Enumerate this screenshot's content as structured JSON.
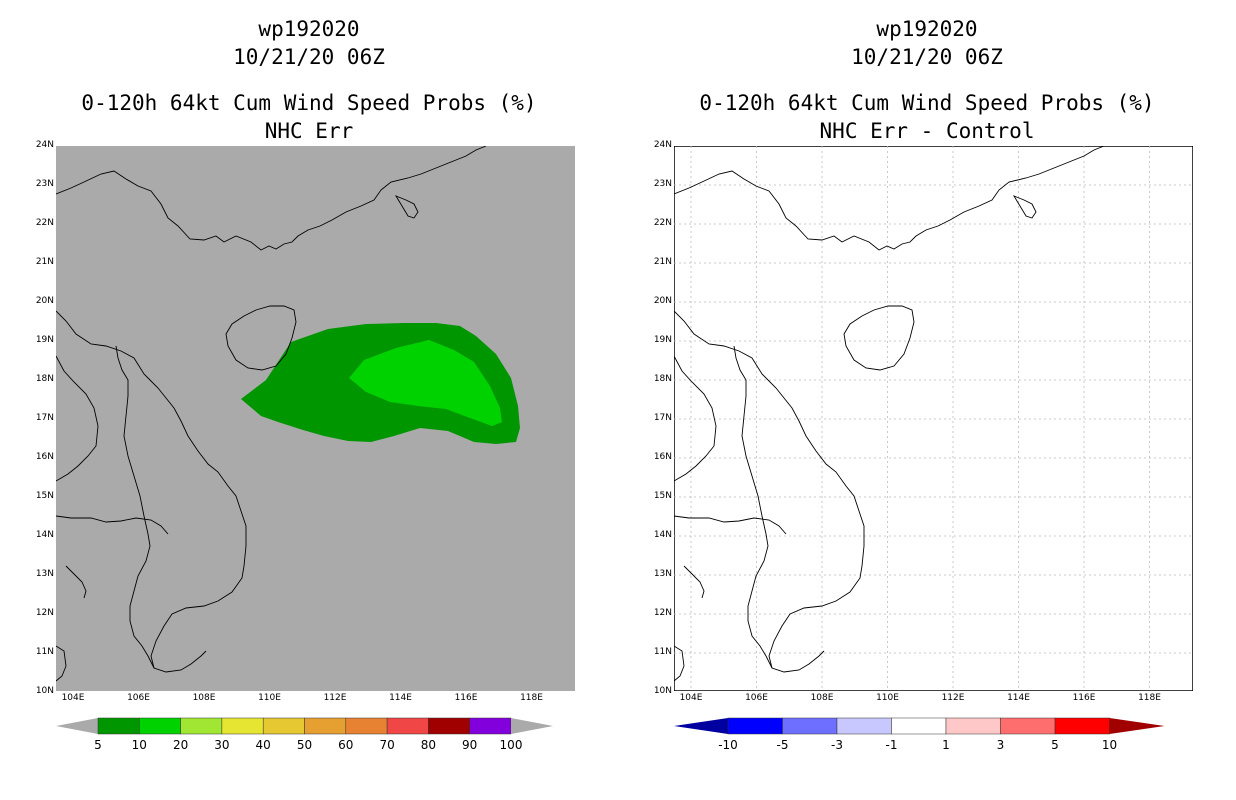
{
  "left_panel": {
    "title_line1": "wp192020",
    "title_line2": "10/21/20 06Z",
    "title_line3": "0-120h 64kt Cum Wind Speed Probs (%)",
    "title_line4": "NHC Err",
    "map_background": "#aaaaaa",
    "contour_colors": [
      "#009600",
      "#00d200"
    ],
    "colorbar_colors": [
      "#009600",
      "#00d200",
      "#a0e632",
      "#e6e632",
      "#e6c832",
      "#e6a032",
      "#e68232",
      "#f04646",
      "#a00000",
      "#8200dc"
    ],
    "colorbar_labels": [
      "5",
      "10",
      "20",
      "30",
      "40",
      "50",
      "60",
      "70",
      "80",
      "90",
      "100"
    ]
  },
  "right_panel": {
    "title_line1": "wp192020",
    "title_line2": "10/21/20 06Z",
    "title_line3": "0-120h 64kt Cum Wind Speed Probs (%)",
    "title_line4": "NHC Err - Control",
    "map_background": "#ffffff",
    "colorbar_colors": [
      "#0000a0",
      "#0000ff",
      "#6e6eff",
      "#c8c8ff",
      "#ffffff",
      "#ffc8c8",
      "#ff6e6e",
      "#ff0000",
      "#a00000"
    ],
    "colorbar_labels": [
      "-10",
      "-5",
      "-3",
      "-1",
      "1",
      "3",
      "5",
      "10"
    ]
  },
  "axes": {
    "lat_labels": [
      "24N",
      "23N",
      "22N",
      "21N",
      "20N",
      "19N",
      "18N",
      "17N",
      "16N",
      "15N",
      "14N",
      "13N",
      "12N",
      "11N",
      "10N"
    ],
    "lon_labels": [
      "104E",
      "106E",
      "108E",
      "110E",
      "112E",
      "114E",
      "116E",
      "118E"
    ]
  }
}
